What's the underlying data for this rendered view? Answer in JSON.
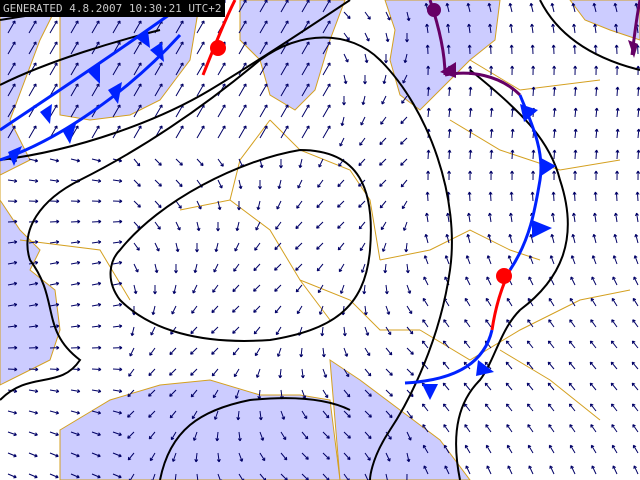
{
  "header": {
    "generated_label": "GENERATED 4.8.2007 10:30:21 UTC+2"
  },
  "colors": {
    "sea": "#ccccff",
    "land": "#ffffff",
    "borders": "#d4a020",
    "isobars": "#000000",
    "cold_front": "#0022ff",
    "warm_front": "#ff0000",
    "occluded_front": "#660066",
    "wind_arrows": "#000066"
  },
  "layers": [
    "sea",
    "land",
    "country-borders",
    "wind-arrows",
    "isobars",
    "cold-fronts",
    "warm-fronts",
    "occluded-front"
  ]
}
